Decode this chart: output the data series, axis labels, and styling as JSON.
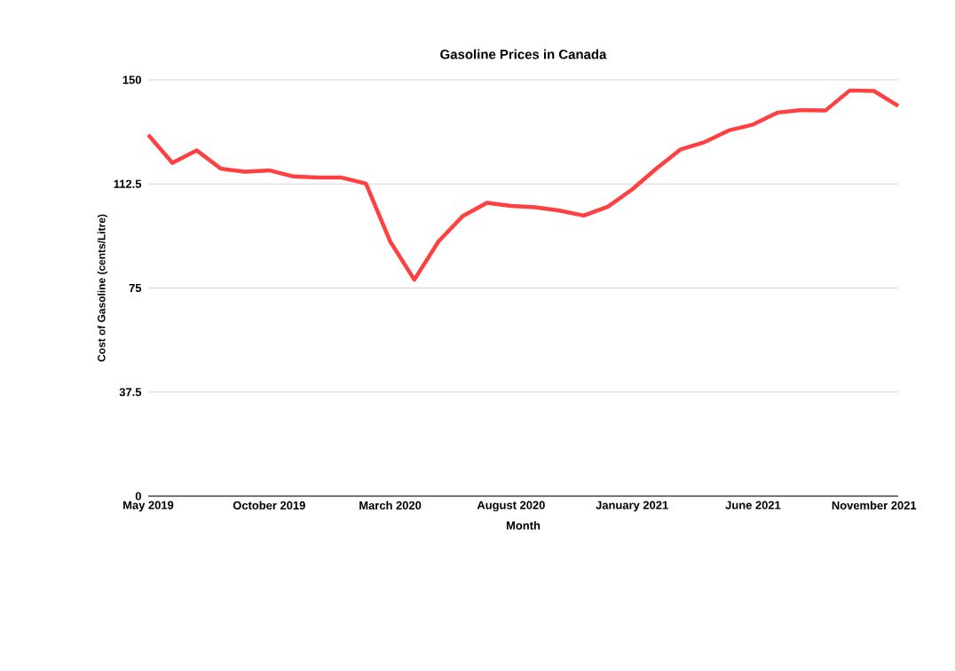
{
  "chart_data": {
    "type": "line",
    "title": "Gasoline Prices in Canada",
    "xlabel": "Month",
    "ylabel": "Cost of Gasoline (cents/Litre)",
    "categories": [
      "May 2019",
      null,
      null,
      null,
      null,
      "October 2019",
      null,
      null,
      null,
      null,
      "March 2020",
      null,
      null,
      null,
      null,
      "August 2020",
      null,
      null,
      null,
      null,
      "January 2021",
      null,
      null,
      null,
      null,
      "June 2021",
      null,
      null,
      null,
      null,
      "November 2021",
      null
    ],
    "series": [
      {
        "color": "#ff4040",
        "values": [
          130.2,
          120.1,
          124.6,
          118.0,
          116.9,
          117.4,
          115.2,
          114.8,
          114.8,
          112.6,
          91.8,
          78.0,
          91.8,
          100.9,
          105.7,
          104.6,
          104.1,
          102.9,
          101.1,
          104.3,
          110.5,
          118.0,
          124.9,
          127.6,
          131.8,
          133.9,
          138.2,
          139.1,
          139.0,
          146.2,
          146.0,
          140.6
        ]
      }
    ],
    "ylim": [
      0,
      150
    ],
    "yticks": [
      0,
      37.5,
      75,
      112.5,
      150
    ],
    "grid": "y"
  }
}
